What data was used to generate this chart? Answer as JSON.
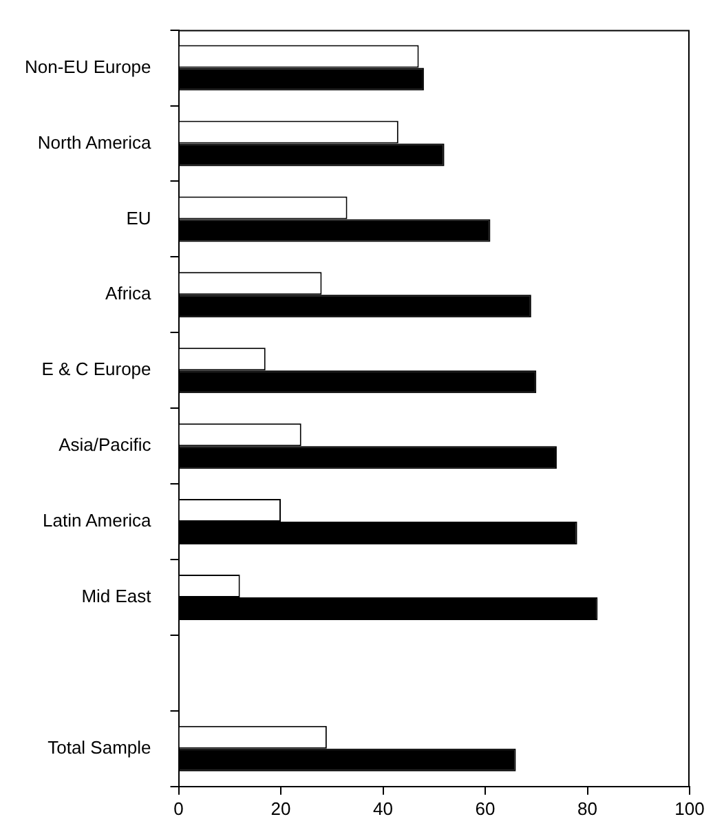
{
  "chart_data": {
    "type": "bar",
    "orientation": "horizontal",
    "categories": [
      "Non-EU Europe",
      "North America",
      "EU",
      "Africa",
      "E & C Europe",
      "Asia/Pacific",
      "Latin America",
      "Mid East",
      null,
      "Total Sample"
    ],
    "series": [
      {
        "color": "#ffffff",
        "values": [
          47,
          43,
          33,
          28,
          17,
          24,
          20,
          12,
          null,
          29
        ]
      },
      {
        "color": "#000000",
        "values": [
          48,
          52,
          61,
          69,
          70,
          74,
          78,
          82,
          null,
          66
        ]
      }
    ],
    "xlim": [
      0,
      100
    ],
    "xticks": [
      0,
      20,
      40,
      60,
      80,
      100
    ],
    "grid": false,
    "legend": false
  }
}
